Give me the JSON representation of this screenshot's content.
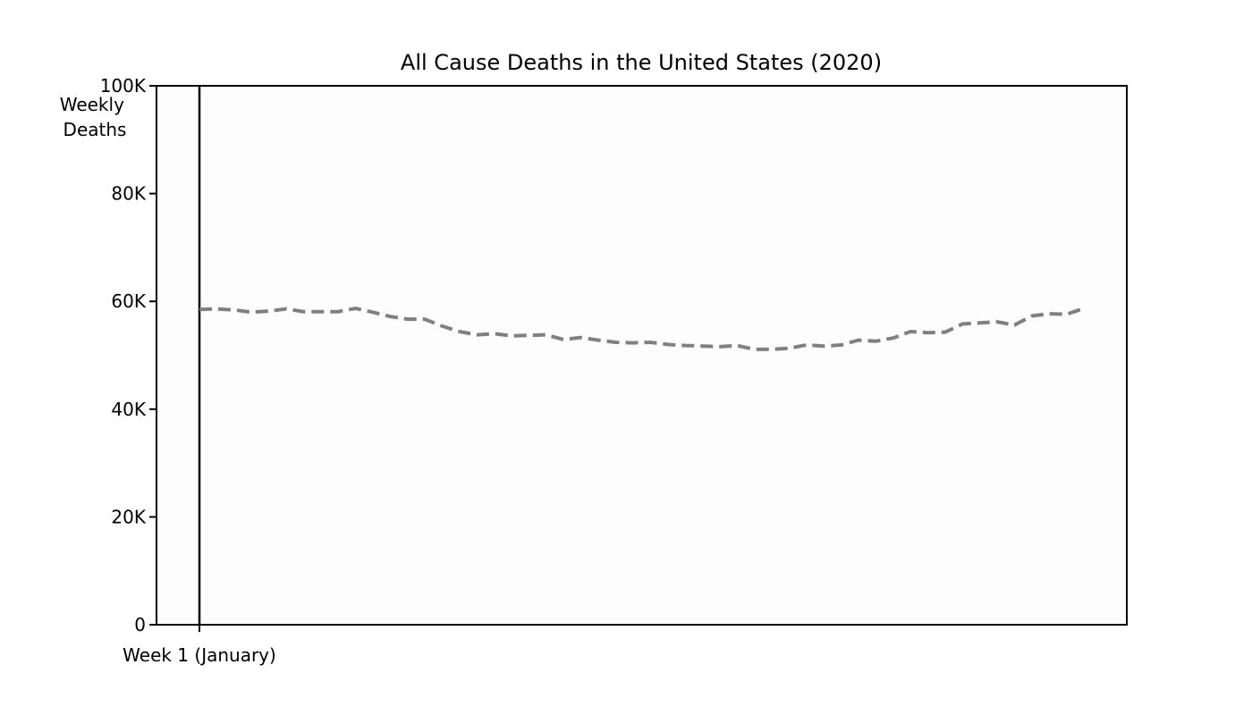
{
  "chart_data": {
    "type": "line",
    "title": "All Cause Deaths in the United States (2020)",
    "xlabel": "",
    "ylabel": "Weekly\nDeaths",
    "ylim": [
      0,
      100000
    ],
    "yticks": [
      {
        "value": 0,
        "label": "0"
      },
      {
        "value": 20000,
        "label": "20K"
      },
      {
        "value": 40000,
        "label": "40K"
      },
      {
        "value": 60000,
        "label": "60K"
      },
      {
        "value": 80000,
        "label": "80K"
      },
      {
        "value": 100000,
        "label": "100K"
      }
    ],
    "xlim": [
      0,
      52
    ],
    "xticks": [
      {
        "value": 1,
        "label": "Week 1 (January)"
      }
    ],
    "marker_line": {
      "x": 1,
      "color": "#000000"
    },
    "grid": false,
    "series": [
      {
        "style": "dashed",
        "color": "#808080",
        "x": [
          1,
          2,
          3,
          4,
          5,
          6,
          7,
          8,
          9,
          10,
          11,
          12,
          13,
          14,
          15,
          16,
          17,
          18,
          19,
          20,
          21,
          22,
          23,
          24,
          25,
          26,
          27,
          28,
          29,
          30,
          31,
          32,
          33,
          34,
          35,
          36,
          37,
          38,
          39,
          40,
          41,
          42,
          43,
          44,
          45,
          46,
          47,
          48,
          49,
          50,
          51,
          52
        ],
        "values": [
          58500,
          58600,
          58400,
          58000,
          58200,
          58600,
          58100,
          58100,
          58100,
          58700,
          58000,
          57200,
          56700,
          56700,
          55400,
          54400,
          53800,
          54000,
          53600,
          53700,
          53800,
          52900,
          53300,
          52800,
          52400,
          52300,
          52400,
          52000,
          51800,
          51700,
          51600,
          51800,
          51100,
          51100,
          51300,
          51900,
          51700,
          51900,
          52800,
          52600,
          53200,
          54400,
          54200,
          54300,
          55800,
          56000,
          56200,
          55600,
          57300,
          57700,
          57600,
          58700
        ]
      }
    ]
  }
}
